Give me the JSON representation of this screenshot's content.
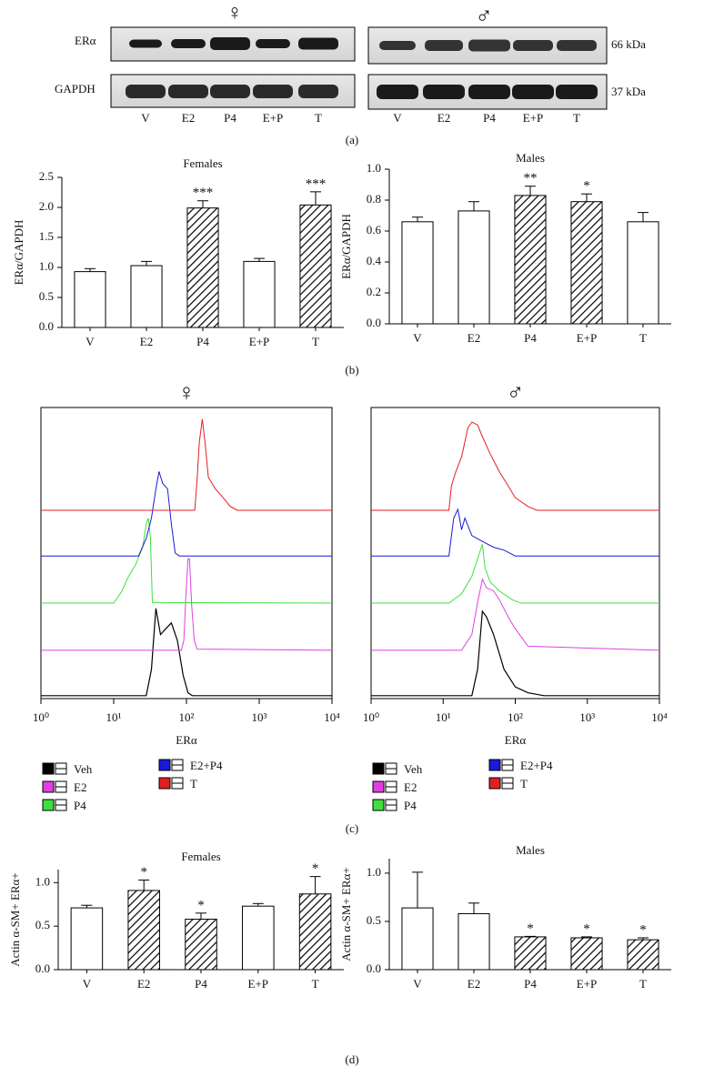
{
  "panel_labels": [
    "(a)",
    "(b)",
    "(c)",
    "(d)"
  ],
  "blot": {
    "female_symbol": "♀",
    "male_symbol": "♂",
    "rows": [
      "ERα",
      "GAPDH"
    ],
    "sizes": [
      "66 kDa",
      "37 kDa"
    ],
    "lanes": [
      "V",
      "E2",
      "P4",
      "E+P",
      "T"
    ]
  },
  "chart_data": [
    {
      "type": "bar",
      "title": "Females",
      "ylabel": "ERα/GAPDH",
      "categories": [
        "V",
        "E2",
        "P4",
        "E+P",
        "T"
      ],
      "values": [
        0.93,
        1.03,
        1.99,
        1.1,
        2.04
      ],
      "errors": [
        0.05,
        0.07,
        0.12,
        0.05,
        0.22
      ],
      "annotations": [
        null,
        null,
        "***",
        null,
        "***"
      ],
      "hatched": [
        false,
        false,
        true,
        false,
        true
      ],
      "color": "#ffffff",
      "ylim": [
        0,
        2.5
      ],
      "yticks": [
        {
          "value": 0,
          "label": "0.0"
        },
        0.5,
        {
          "value": 1,
          "label": "1.0"
        },
        1.5,
        {
          "value": 2,
          "label": "2.0"
        },
        2.5
      ]
    },
    {
      "type": "bar",
      "title": "Males",
      "ylabel": "ERα/GAPDH",
      "categories": [
        "V",
        "E2",
        "P4",
        "E+P",
        "T"
      ],
      "values": [
        0.66,
        0.73,
        0.83,
        0.79,
        0.66
      ],
      "errors": [
        0.03,
        0.06,
        0.06,
        0.05,
        0.06
      ],
      "annotations": [
        null,
        null,
        "**",
        "*",
        null
      ],
      "hatched": [
        false,
        false,
        true,
        true,
        false
      ],
      "color": "#ffffff",
      "ylim": [
        0,
        1
      ],
      "yticks": [
        {
          "value": 0,
          "label": "0.0"
        },
        0.2,
        0.4,
        0.6,
        0.8,
        {
          "value": 1,
          "label": "1.0"
        }
      ]
    },
    {
      "type": "line",
      "title": "♀",
      "xlabel": "ERα",
      "xscale": "log",
      "xlim": [
        1,
        10000
      ],
      "xticks": [
        {
          "value": 1,
          "label": "10⁰"
        },
        {
          "value": 10,
          "label": "10¹"
        },
        {
          "value": 100,
          "label": "10²"
        },
        {
          "value": 1000,
          "label": "10³"
        },
        {
          "value": 10000,
          "label": "10⁴"
        }
      ],
      "ylim": [
        0,
        100
      ],
      "series": [
        {
          "name": "Veh",
          "color": "#000000",
          "x": [
            1,
            28,
            33,
            38,
            44,
            52,
            62,
            75,
            90,
            105,
            120,
            10000
          ],
          "values": [
            1,
            1,
            10,
            31,
            22,
            24,
            26,
            20,
            8,
            2,
            1,
            1
          ]
        },
        {
          "name": "E2",
          "color": "#e040e0",
          "x": [
            1,
            85,
            92,
            98,
            105,
            110,
            118,
            128,
            140,
            10000
          ],
          "values": [
            16.6,
            16.6,
            20,
            35,
            48,
            48,
            32,
            20,
            17,
            16.6
          ]
        },
        {
          "name": "P4",
          "color": "#3ee03e",
          "x": [
            1,
            10,
            13,
            16,
            20,
            25,
            28,
            30,
            32,
            34,
            10000
          ],
          "values": [
            32.8,
            32.8,
            37,
            42,
            46,
            52,
            60,
            62,
            55,
            33,
            32.8
          ]
        },
        {
          "name": "E2+P4",
          "color": "#1a1ad8",
          "x": [
            1,
            22,
            28,
            33,
            38,
            42,
            47,
            55,
            62,
            70,
            80,
            10000
          ],
          "values": [
            49,
            49,
            55,
            62,
            72,
            78,
            74,
            72,
            60,
            50,
            49,
            49
          ]
        },
        {
          "name": "T",
          "color": "#e02020",
          "x": [
            1,
            130,
            140,
            150,
            165,
            180,
            200,
            250,
            320,
            400,
            500,
            10000
          ],
          "values": [
            64.7,
            64.7,
            75,
            88,
            96,
            88,
            76,
            72,
            69,
            66,
            64.7,
            64.7
          ]
        }
      ]
    },
    {
      "type": "line",
      "title": "♂",
      "xlabel": "ERα",
      "xscale": "log",
      "xlim": [
        1,
        10000
      ],
      "xticks": [
        {
          "value": 1,
          "label": "10⁰"
        },
        {
          "value": 10,
          "label": "10¹"
        },
        {
          "value": 100,
          "label": "10²"
        },
        {
          "value": 1000,
          "label": "10³"
        },
        {
          "value": 10000,
          "label": "10⁴"
        }
      ],
      "ylim": [
        0,
        100
      ],
      "series": [
        {
          "name": "Veh",
          "color": "#000000",
          "x": [
            1,
            25,
            30,
            35,
            40,
            50,
            70,
            100,
            150,
            250,
            10000
          ],
          "values": [
            1,
            1,
            10,
            30,
            28,
            22,
            10,
            4,
            2,
            1,
            1
          ]
        },
        {
          "name": "E2",
          "color": "#e040e0",
          "x": [
            1,
            18,
            25,
            30,
            35,
            40,
            50,
            60,
            80,
            100,
            150,
            10000
          ],
          "values": [
            16.6,
            16.6,
            22,
            33,
            41,
            38,
            37,
            34,
            28,
            24,
            18,
            16.6
          ]
        },
        {
          "name": "P4",
          "color": "#3ee03e",
          "x": [
            1,
            12,
            18,
            25,
            30,
            35,
            38,
            45,
            60,
            90,
            120,
            10000
          ],
          "values": [
            32.8,
            32.8,
            36,
            42,
            48,
            53,
            45,
            40,
            37,
            34,
            32.8,
            32.8
          ]
        },
        {
          "name": "E2+P4",
          "color": "#1a1ad8",
          "x": [
            1,
            12,
            14,
            16,
            18,
            20,
            25,
            35,
            50,
            70,
            100,
            10000
          ],
          "values": [
            49,
            49,
            62,
            65,
            58,
            62,
            56,
            54,
            52,
            51,
            49,
            49
          ]
        },
        {
          "name": "T",
          "color": "#e02020",
          "x": [
            1,
            12,
            13,
            15,
            18,
            22,
            25,
            30,
            35,
            45,
            60,
            80,
            100,
            150,
            200,
            10000
          ],
          "values": [
            64.7,
            64.7,
            73,
            78,
            83,
            93,
            95,
            94,
            90,
            84,
            78,
            73,
            69,
            66,
            64.7,
            64.7
          ]
        }
      ]
    },
    {
      "type": "bar",
      "title": "Females",
      "ylabel": "Actin α-SM+ ERα+",
      "categories": [
        "V",
        "E2",
        "P4",
        "E+P",
        "T"
      ],
      "values": [
        0.71,
        0.91,
        0.58,
        0.73,
        0.87
      ],
      "errors": [
        0.03,
        0.12,
        0.07,
        0.03,
        0.2
      ],
      "annotations": [
        null,
        "*",
        "*",
        null,
        "*"
      ],
      "hatched": [
        false,
        true,
        true,
        false,
        true
      ],
      "color": "#ffffff",
      "ylim": [
        0,
        1.15
      ],
      "yticks": [
        {
          "value": 0,
          "label": "0.0"
        },
        0.5,
        {
          "value": 1,
          "label": "1.0"
        }
      ]
    },
    {
      "type": "bar",
      "title": "Males",
      "ylabel": "Actin α-SM+ ERα+",
      "categories": [
        "V",
        "E2",
        "P4",
        "E+P",
        "T"
      ],
      "values": [
        0.64,
        0.58,
        0.34,
        0.33,
        0.31
      ],
      "errors": [
        0.37,
        0.11,
        0.005,
        0.01,
        0.02
      ],
      "annotations": [
        null,
        null,
        "*",
        "*",
        "*"
      ],
      "hatched": [
        false,
        false,
        true,
        true,
        true
      ],
      "color": "#ffffff",
      "ylim": [
        0,
        1.15
      ],
      "yticks": [
        {
          "value": 0,
          "label": "0.0"
        },
        0.5,
        {
          "value": 1,
          "label": "1.0"
        }
      ]
    }
  ]
}
